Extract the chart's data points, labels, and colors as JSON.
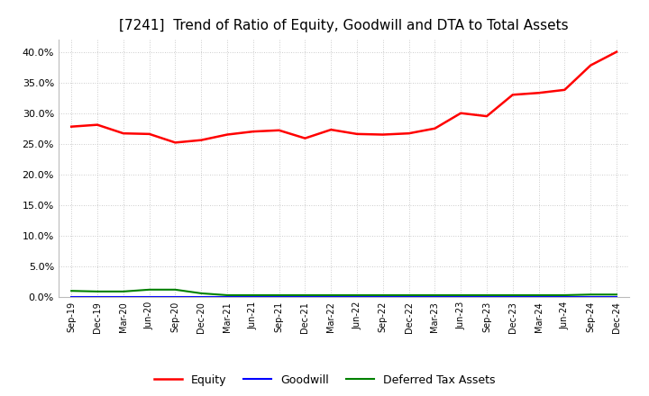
{
  "title": "[7241]  Trend of Ratio of Equity, Goodwill and DTA to Total Assets",
  "x_labels": [
    "Sep-19",
    "Dec-19",
    "Mar-20",
    "Jun-20",
    "Sep-20",
    "Dec-20",
    "Mar-21",
    "Jun-21",
    "Sep-21",
    "Dec-21",
    "Mar-22",
    "Jun-22",
    "Sep-22",
    "Dec-22",
    "Mar-23",
    "Jun-23",
    "Sep-23",
    "Dec-23",
    "Mar-24",
    "Jun-24",
    "Sep-24",
    "Dec-24"
  ],
  "equity": [
    0.278,
    0.281,
    0.267,
    0.266,
    0.252,
    0.256,
    0.265,
    0.27,
    0.272,
    0.259,
    0.273,
    0.266,
    0.265,
    0.267,
    0.275,
    0.3,
    0.295,
    0.33,
    0.333,
    0.338,
    0.378,
    0.4
  ],
  "goodwill": [
    0.0,
    0.0,
    0.0,
    0.0,
    0.0,
    0.0,
    0.0,
    0.0,
    0.0,
    0.0,
    0.0,
    0.0,
    0.0,
    0.0,
    0.0,
    0.0,
    0.0,
    0.0,
    0.0,
    0.0,
    0.0,
    0.0
  ],
  "dta": [
    0.01,
    0.009,
    0.009,
    0.012,
    0.012,
    0.006,
    0.003,
    0.003,
    0.003,
    0.003,
    0.003,
    0.003,
    0.003,
    0.003,
    0.003,
    0.003,
    0.003,
    0.003,
    0.003,
    0.003,
    0.004,
    0.004
  ],
  "equity_color": "#FF0000",
  "goodwill_color": "#0000FF",
  "dta_color": "#008000",
  "ylim": [
    0.0,
    0.42
  ],
  "yticks": [
    0.0,
    0.05,
    0.1,
    0.15,
    0.2,
    0.25,
    0.3,
    0.35,
    0.4
  ],
  "bg_color": "#FFFFFF",
  "grid_color": "#AAAAAA",
  "title_fontsize": 11,
  "tick_fontsize": 8,
  "xtick_fontsize": 7,
  "legend_labels": [
    "Equity",
    "Goodwill",
    "Deferred Tax Assets"
  ],
  "legend_fontsize": 9
}
